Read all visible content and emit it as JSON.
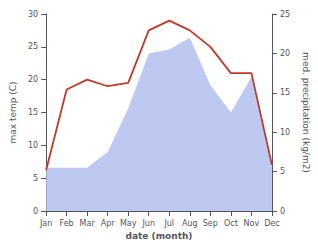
{
  "chart_data": {
    "type": "line",
    "xlabel": "date (month)",
    "ylabel": "max temp (C)",
    "y2label": "med. precipitation (kg/m2)",
    "categories": [
      "Jan",
      "Feb",
      "Mar",
      "Apr",
      "May",
      "Jun",
      "Jul",
      "Aug",
      "Sep",
      "Oct",
      "Nov",
      "Dec"
    ],
    "series": [
      {
        "type": "area",
        "axis": "y2",
        "color": "#b3bfee",
        "values": [
          5.5,
          5.5,
          5.5,
          7.5,
          13.0,
          20.0,
          20.5,
          22.0,
          16.0,
          12.5,
          17.0,
          5.5
        ]
      },
      {
        "type": "line",
        "color": "#c0392b",
        "values": [
          6.2,
          18.5,
          20.0,
          19.0,
          19.5,
          27.5,
          29.0,
          27.5,
          25.0,
          21.0,
          21.0,
          7.0
        ]
      }
    ],
    "ylim": [
      0,
      30
    ],
    "yticks": [
      0,
      5,
      10,
      15,
      20,
      25,
      30
    ],
    "y2lim": [
      0,
      25
    ],
    "y2ticks": [
      0,
      5,
      10,
      15,
      20,
      25
    ],
    "grid": false
  }
}
